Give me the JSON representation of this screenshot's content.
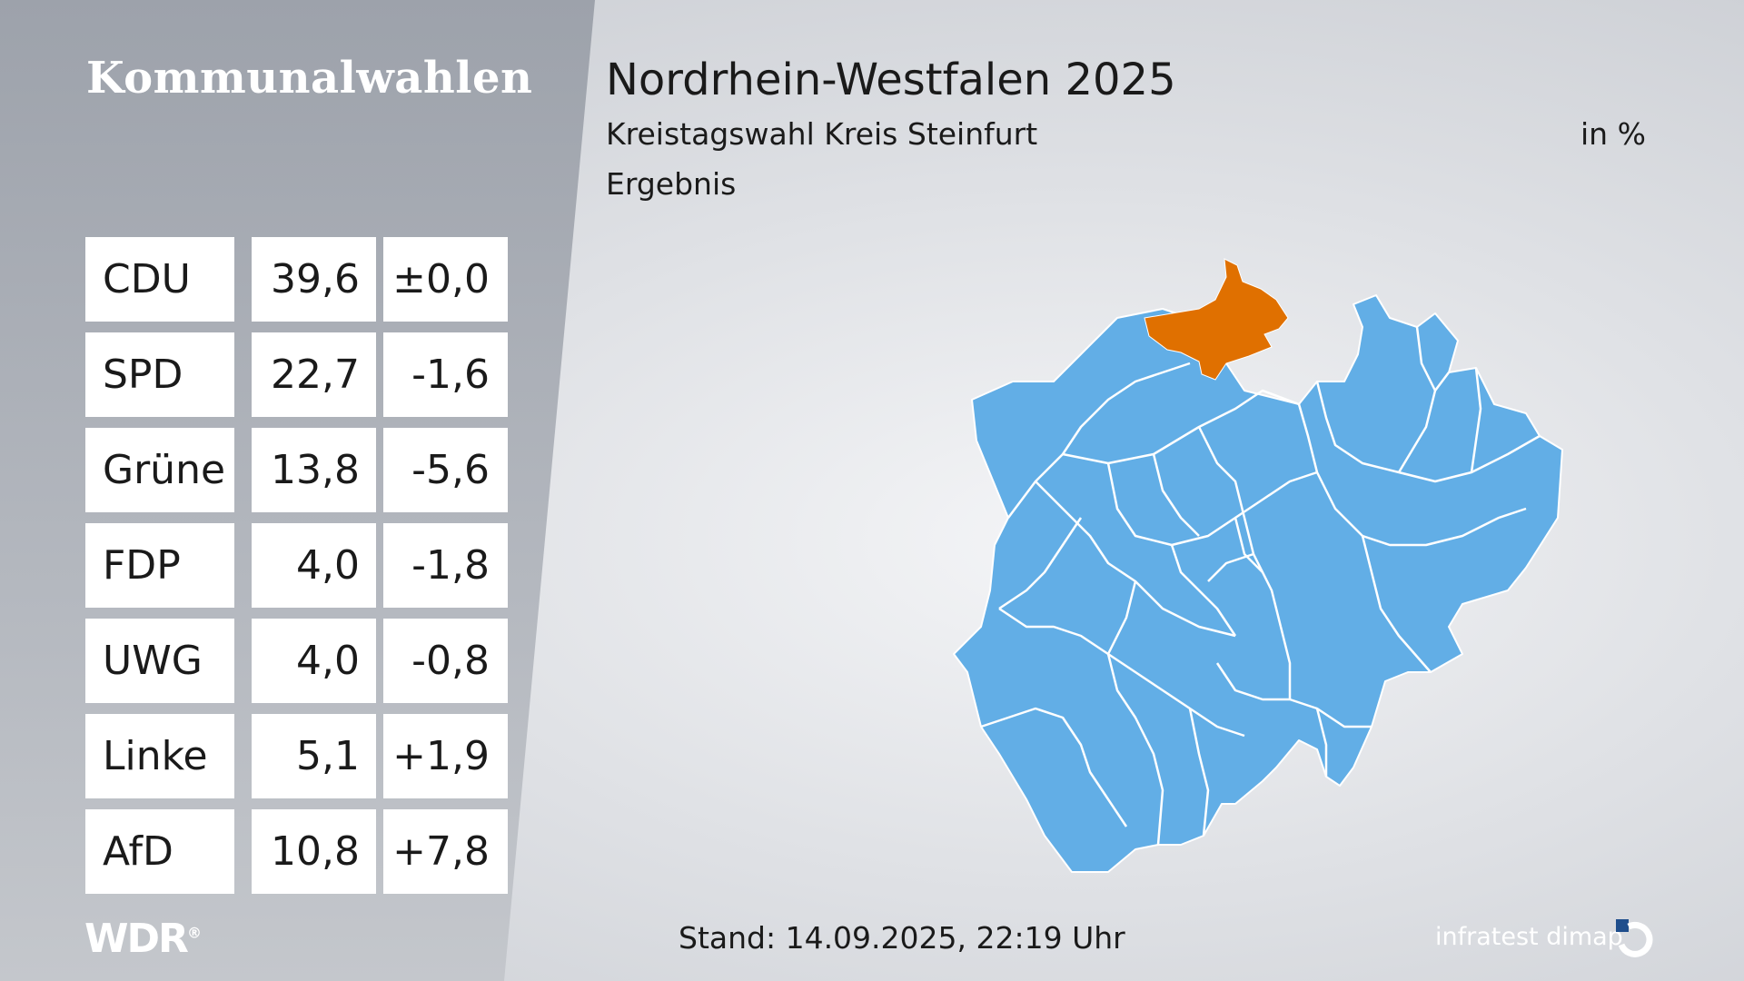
{
  "panel": {
    "title": "Kommunalwahlen"
  },
  "header": {
    "title": "Nordrhein-Westfalen 2025",
    "subtitle": "Kreistagswahl Kreis Steinfurt",
    "result_label": "Ergebnis",
    "unit": "in %"
  },
  "results": [
    {
      "party": "CDU",
      "value": "39,6",
      "diff": "±0,0"
    },
    {
      "party": "SPD",
      "value": "22,7",
      "diff": "-1,6"
    },
    {
      "party": "Grüne",
      "value": "13,8",
      "diff": "-5,6"
    },
    {
      "party": "FDP",
      "value": "4,0",
      "diff": "-1,8"
    },
    {
      "party": "UWG",
      "value": "4,0",
      "diff": "-0,8"
    },
    {
      "party": "Linke",
      "value": "5,1",
      "diff": "+1,9"
    },
    {
      "party": "AfD",
      "value": "10,8",
      "diff": "+7,8"
    }
  ],
  "map": {
    "region_color": "#62aee6",
    "highlight_color": "#e07000",
    "border_color": "#ffffff",
    "highlighted_region": "Kreis Steinfurt"
  },
  "footer": {
    "broadcaster": "WDR",
    "stand": "Stand: 14.09.2025, 22:19 Uhr",
    "pollster": "infratest dimap"
  },
  "colors": {
    "text": "#1a1a1a",
    "cell_background": "#ffffff"
  }
}
